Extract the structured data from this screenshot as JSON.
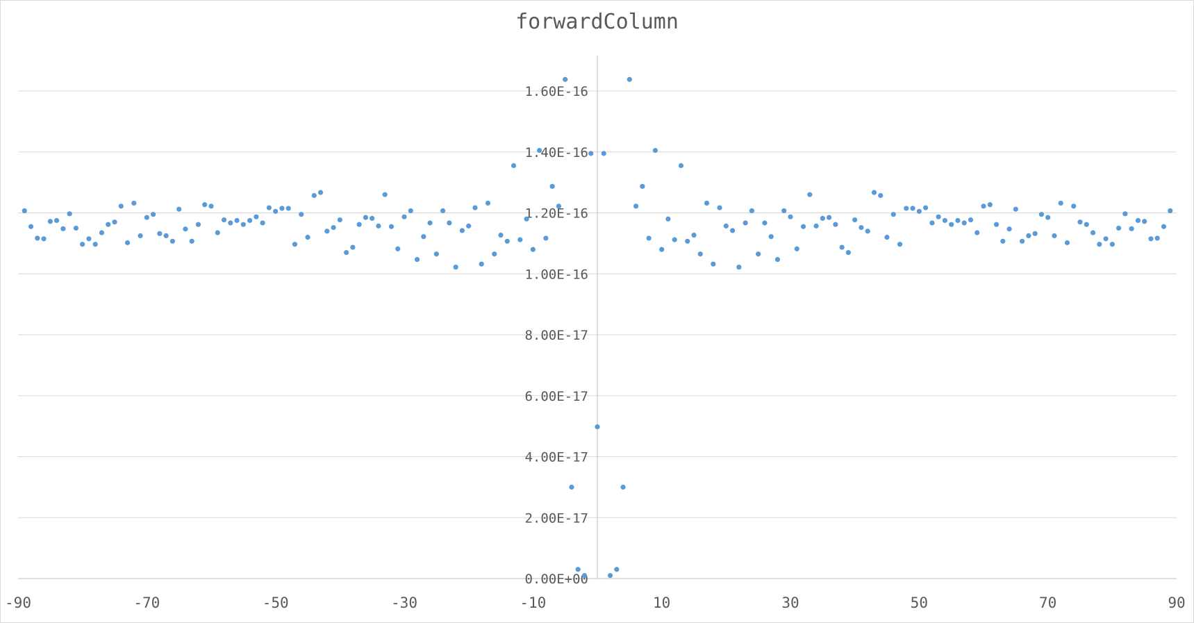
{
  "chart_data": {
    "type": "scatter",
    "title": "forwardColumn",
    "xlabel": "",
    "ylabel": "",
    "xlim": [
      -90,
      90
    ],
    "ylim": [
      0,
      1.72e-16
    ],
    "x_ticks": [
      -90,
      -70,
      -50,
      -30,
      -10,
      10,
      30,
      50,
      70,
      90
    ],
    "x_tick_labels": [
      "-90",
      "-70",
      "-50",
      "-30",
      "-10",
      "10",
      "30",
      "50",
      "70",
      "90"
    ],
    "y_ticks": [
      0,
      2e-17,
      4e-17,
      6e-17,
      8e-17,
      1e-16,
      1.2e-16,
      1.4e-16,
      1.6e-16
    ],
    "y_tick_labels": [
      "0.00E+00",
      "2.00E-17",
      "4.00E-17",
      "6.00E-17",
      "8.00E-17",
      "1.00E-16",
      "1.20E-16",
      "1.40E-16",
      "1.60E-16"
    ],
    "grid": true,
    "legend": "none",
    "marker_color": "#5b9bd5",
    "series": [
      {
        "x": [
          -89,
          -88,
          -87,
          -86,
          -85,
          -84,
          -83,
          -82,
          -81,
          -80,
          -79,
          -78,
          -77,
          -76,
          -75,
          -74,
          -73,
          -72,
          -71,
          -70,
          -69,
          -68,
          -67,
          -66,
          -65,
          -64,
          -63,
          -62,
          -61,
          -60,
          -59,
          -58,
          -57,
          -56,
          -55,
          -54,
          -53,
          -52,
          -51,
          -50,
          -49,
          -48,
          -47,
          -46,
          -45,
          -44,
          -43,
          -42,
          -41,
          -40,
          -39,
          -38,
          -37,
          -36,
          -35,
          -34,
          -33,
          -32,
          -31,
          -30,
          -29,
          -28,
          -27,
          -26,
          -25,
          -24,
          -23,
          -22,
          -21,
          -20,
          -19,
          -18,
          -17,
          -16,
          -15,
          -14,
          -13,
          -12,
          -11,
          -10,
          -9,
          -8,
          -7,
          -6,
          -5,
          -4,
          -3,
          -2,
          -1,
          0,
          1,
          2,
          3,
          4,
          5,
          6,
          7,
          8,
          9,
          10,
          11,
          12,
          13,
          14,
          15,
          16,
          17,
          18,
          19,
          20,
          21,
          22,
          23,
          24,
          25,
          26,
          27,
          28,
          29,
          30,
          31,
          32,
          33,
          34,
          35,
          36,
          37,
          38,
          39,
          40,
          41,
          42,
          43,
          44,
          45,
          46,
          47,
          48,
          49,
          50,
          51,
          52,
          53,
          54,
          55,
          56,
          57,
          58,
          59,
          60,
          61,
          62,
          63,
          64,
          65,
          66,
          67,
          68,
          69,
          70,
          71,
          72,
          73,
          74,
          75,
          76,
          77,
          78,
          79,
          80,
          81,
          82,
          83,
          84,
          85,
          86,
          87,
          88,
          89
        ],
        "y": [
          1.207e-16,
          1.155e-16,
          1.117e-16,
          1.115e-16,
          1.172e-16,
          1.175e-16,
          1.148e-16,
          1.197e-16,
          1.15e-16,
          1.097e-16,
          1.115e-16,
          1.097e-16,
          1.135e-16,
          1.162e-16,
          1.17e-16,
          1.222e-16,
          1.102e-16,
          1.232e-16,
          1.125e-16,
          1.185e-16,
          1.195e-16,
          1.132e-16,
          1.125e-16,
          1.107e-16,
          1.212e-16,
          1.147e-16,
          1.107e-16,
          1.162e-16,
          1.227e-16,
          1.222e-16,
          1.135e-16,
          1.177e-16,
          1.167e-16,
          1.175e-16,
          1.162e-16,
          1.175e-16,
          1.187e-16,
          1.167e-16,
          1.217e-16,
          1.205e-16,
          1.215e-16,
          1.215e-16,
          1.097e-16,
          1.195e-16,
          1.12e-16,
          1.257e-16,
          1.267e-16,
          1.14e-16,
          1.152e-16,
          1.177e-16,
          1.07e-16,
          1.087e-16,
          1.162e-16,
          1.185e-16,
          1.182e-16,
          1.157e-16,
          1.26e-16,
          1.155e-16,
          1.082e-16,
          1.187e-16,
          1.207e-16,
          1.047e-16,
          1.122e-16,
          1.167e-16,
          1.065e-16,
          1.207e-16,
          1.167e-16,
          1.022e-16,
          1.142e-16,
          1.157e-16,
          1.217e-16,
          1.032e-16,
          1.232e-16,
          1.065e-16,
          1.127e-16,
          1.107e-16,
          1.355e-16,
          1.112e-16,
          1.18e-16,
          1.08e-16,
          1.405e-16,
          1.117e-16,
          1.287e-16,
          1.222e-16,
          1.638e-16,
          3e-17,
          3e-18,
          1e-18,
          1.395e-16,
          4.98e-17,
          1.395e-16,
          1e-18,
          3e-18,
          3e-17,
          1.638e-16,
          1.222e-16,
          1.287e-16,
          1.117e-16,
          1.405e-16,
          1.08e-16,
          1.18e-16,
          1.112e-16,
          1.355e-16,
          1.107e-16,
          1.127e-16,
          1.065e-16,
          1.232e-16,
          1.032e-16,
          1.217e-16,
          1.157e-16,
          1.142e-16,
          1.022e-16,
          1.167e-16,
          1.207e-16,
          1.065e-16,
          1.167e-16,
          1.122e-16,
          1.047e-16,
          1.207e-16,
          1.187e-16,
          1.082e-16,
          1.155e-16,
          1.26e-16,
          1.157e-16,
          1.182e-16,
          1.185e-16,
          1.162e-16,
          1.087e-16,
          1.07e-16,
          1.177e-16,
          1.152e-16,
          1.14e-16,
          1.267e-16,
          1.257e-16,
          1.12e-16,
          1.195e-16,
          1.097e-16,
          1.215e-16,
          1.215e-16,
          1.205e-16,
          1.217e-16,
          1.167e-16,
          1.187e-16,
          1.175e-16,
          1.162e-16,
          1.175e-16,
          1.167e-16,
          1.177e-16,
          1.135e-16,
          1.222e-16,
          1.227e-16,
          1.162e-16,
          1.107e-16,
          1.147e-16,
          1.212e-16,
          1.107e-16,
          1.125e-16,
          1.132e-16,
          1.195e-16,
          1.185e-16,
          1.125e-16,
          1.232e-16,
          1.102e-16,
          1.222e-16,
          1.17e-16,
          1.162e-16,
          1.135e-16,
          1.097e-16,
          1.115e-16,
          1.097e-16,
          1.15e-16,
          1.197e-16,
          1.148e-16,
          1.175e-16,
          1.172e-16,
          1.115e-16,
          1.117e-16,
          1.155e-16,
          1.207e-16
        ]
      }
    ]
  }
}
